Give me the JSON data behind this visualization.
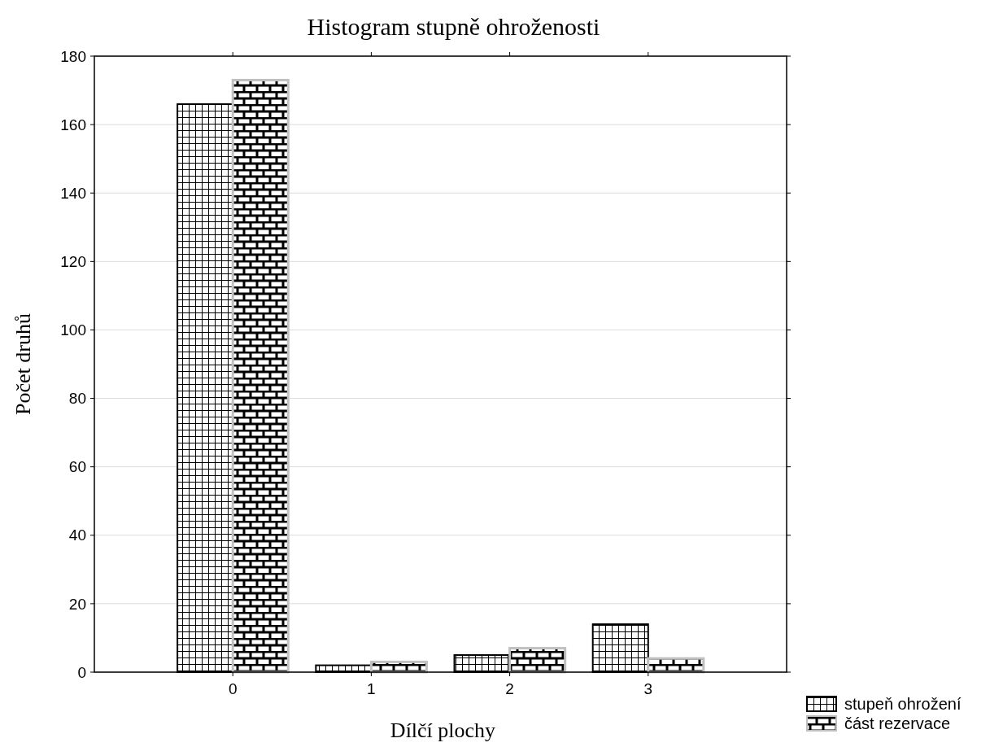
{
  "chart_data": {
    "type": "bar",
    "title": "Histogram stupně ohroženosti",
    "xlabel": "Dílčí plochy",
    "ylabel": "Počet druhů",
    "categories": [
      "0",
      "1",
      "2",
      "3"
    ],
    "series": [
      {
        "name": "stupeň ohrožení",
        "color": "#000000",
        "values": [
          166,
          2,
          5,
          14
        ]
      },
      {
        "name": "část rezervace",
        "color": "#c0c0c0",
        "values": [
          173,
          3,
          7,
          4
        ]
      }
    ],
    "ylim": [
      0,
      180
    ],
    "yticks": [
      0,
      20,
      40,
      60,
      80,
      100,
      120,
      140,
      160,
      180
    ],
    "grid": "y",
    "legend": "bottom right"
  }
}
